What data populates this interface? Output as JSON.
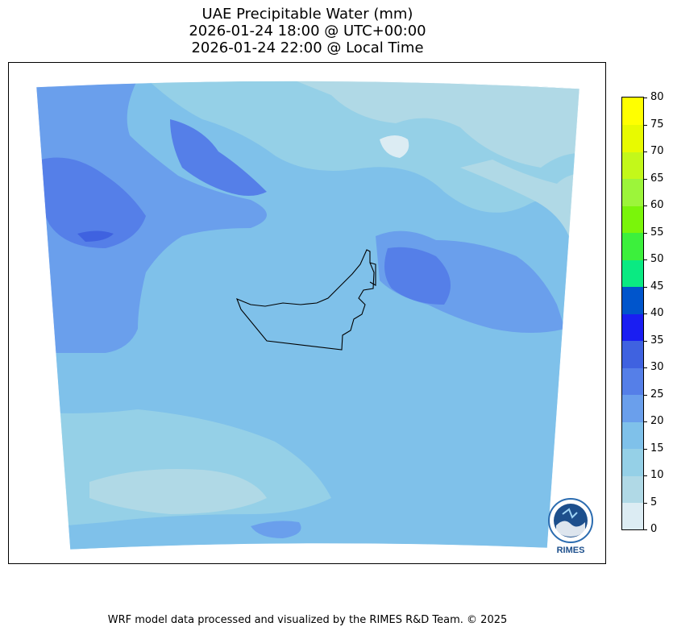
{
  "title": {
    "line1": "UAE Precipitable Water (mm)",
    "line2": "2026-01-24 18:00 @ UTC+00:00",
    "line3": "2026-01-24 22:00 @ Local Time"
  },
  "map": {
    "region": "UAE",
    "variable": "Precipitable Water",
    "units": "mm",
    "boundary": "UAE national border and coastline"
  },
  "colorbar": {
    "levels": [
      0,
      5,
      10,
      15,
      20,
      25,
      30,
      35,
      40,
      45,
      50,
      55,
      60,
      65,
      70,
      75,
      80
    ],
    "labels": [
      "0",
      "5",
      "10",
      "15",
      "20",
      "25",
      "30",
      "35",
      "40",
      "45",
      "50",
      "55",
      "60",
      "65",
      "70",
      "75",
      "80"
    ],
    "colors": [
      "#dcecf3",
      "#b0d9e6",
      "#95d0e7",
      "#7fc1ea",
      "#6a9fec",
      "#557fe8",
      "#3f62e0",
      "#1a1ef2",
      "#0055cc",
      "#0aea82",
      "#3cf03c",
      "#7af50a",
      "#9cf53a",
      "#c3f81a",
      "#e8fa00",
      "#ffff00",
      "#ffd400"
    ]
  },
  "logo": {
    "text": "RIMES",
    "icon": "rimes-logo-icon"
  },
  "footer": {
    "credit": "WRF model data processed and visualized by the RIMES R&D Team. © 2025"
  }
}
